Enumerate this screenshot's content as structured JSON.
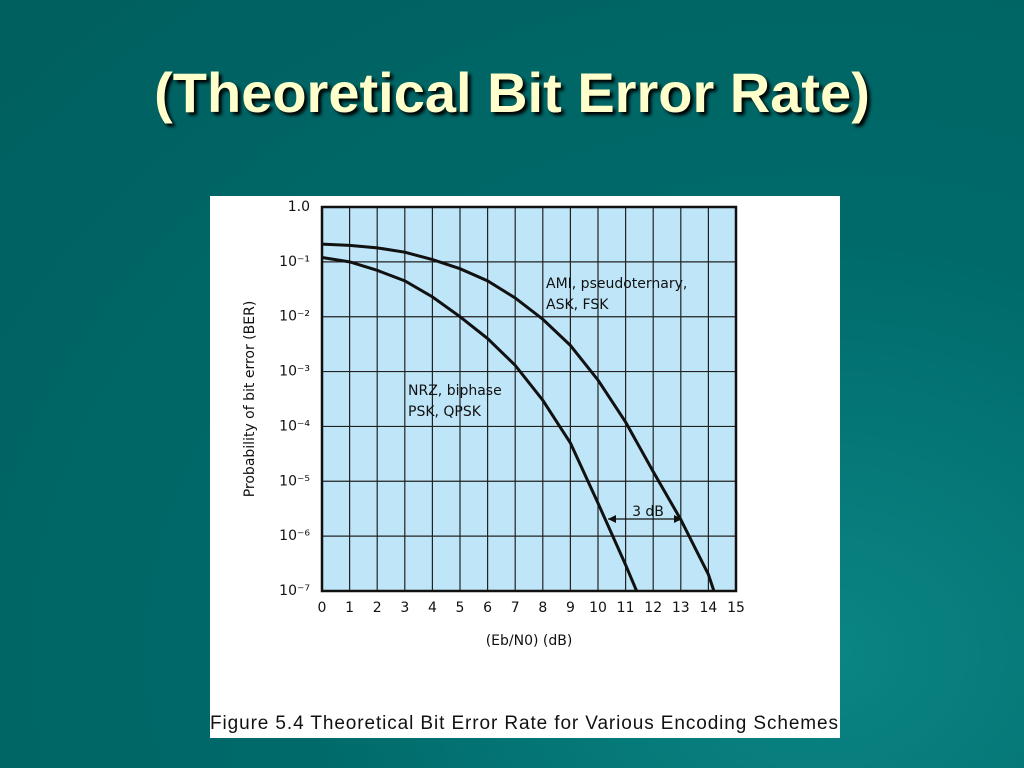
{
  "slide": {
    "title": "(Theoretical Bit Error Rate)"
  },
  "chart_data": {
    "type": "line",
    "caption": "Figure 5.4  Theoretical Bit Error Rate for Various Encoding Schemes",
    "xlabel": "(Eb/N0) (dB)",
    "ylabel": "Probability of bit error (BER)",
    "xlim": [
      0,
      15
    ],
    "xticks": [
      0,
      1,
      2,
      3,
      4,
      5,
      6,
      7,
      8,
      9,
      10,
      11,
      12,
      13,
      14,
      15
    ],
    "ylim": [
      1e-07,
      1
    ],
    "ylog": true,
    "yticks": [
      {
        "value": 1,
        "label": "1.0"
      },
      {
        "value": 0.1,
        "label": "10⁻¹"
      },
      {
        "value": 0.01,
        "label": "10⁻²"
      },
      {
        "value": 0.001,
        "label": "10⁻³"
      },
      {
        "value": 0.0001,
        "label": "10⁻⁴"
      },
      {
        "value": 1e-05,
        "label": "10⁻⁵"
      },
      {
        "value": 1e-06,
        "label": "10⁻⁶"
      },
      {
        "value": 1e-07,
        "label": "10⁻⁷"
      }
    ],
    "grid": true,
    "background": "#bfe6f8",
    "series": [
      {
        "color": "#111111",
        "x": [
          0,
          1,
          2,
          3,
          4,
          5,
          6,
          7,
          8,
          9,
          10,
          11,
          11.4
        ],
        "values": [
          0.12,
          0.1,
          0.07,
          0.045,
          0.023,
          0.01,
          0.004,
          0.0013,
          0.0003,
          5e-05,
          4e-06,
          3e-07,
          1e-07
        ]
      },
      {
        "color": "#111111",
        "x": [
          0,
          1,
          2,
          3,
          4,
          5,
          6,
          7,
          8,
          9,
          10,
          11,
          12,
          13,
          14,
          14.2
        ],
        "values": [
          0.21,
          0.2,
          0.18,
          0.15,
          0.11,
          0.075,
          0.045,
          0.022,
          0.009,
          0.003,
          0.0007,
          0.00012,
          1.5e-05,
          2e-06,
          2e-07,
          1e-07
        ]
      }
    ],
    "annotations": [
      {
        "lines": [
          "AMI, pseudoternary,",
          "ASK, FSK"
        ]
      },
      {
        "lines": [
          "NRZ, biphase",
          "PSK, QPSK"
        ]
      },
      {
        "lines": [
          "3 dB"
        ]
      }
    ]
  }
}
